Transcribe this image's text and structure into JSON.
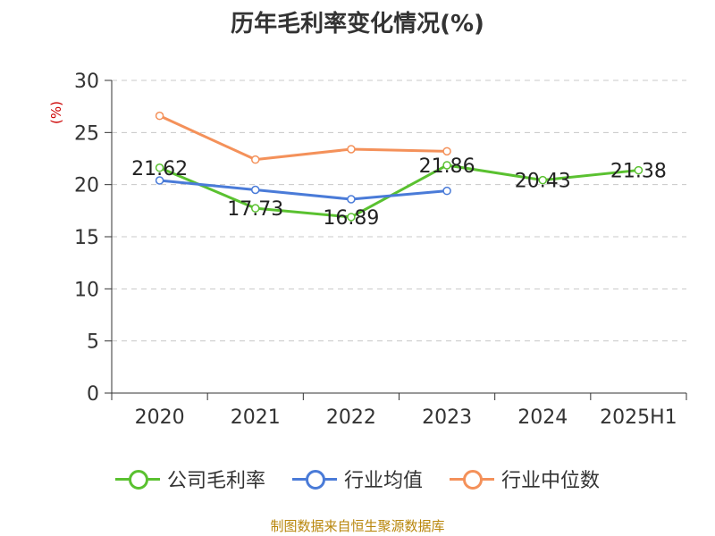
{
  "title": "历年毛利率变化情况(%)",
  "source": "制图数据来自恒生聚源数据库",
  "chart_data": {
    "type": "line",
    "categories": [
      "2020",
      "2021",
      "2022",
      "2023",
      "2024",
      "2025H1"
    ],
    "ylabel": "(%)",
    "ylim": [
      0,
      30
    ],
    "yticks": [
      0,
      5,
      10,
      15,
      20,
      25,
      30
    ],
    "grid": true,
    "legend_position": "bottom",
    "series": [
      {
        "name": "公司毛利率",
        "color": "#5ac130",
        "values": [
          21.62,
          17.73,
          16.89,
          21.86,
          20.43,
          21.38
        ],
        "labels": [
          "21.62",
          "17.73",
          "16.89",
          "21.86",
          "20.43",
          "21.38"
        ]
      },
      {
        "name": "行业均值",
        "color": "#4a7bd8",
        "values": [
          20.4,
          19.5,
          18.6,
          19.4,
          null,
          null
        ]
      },
      {
        "name": "行业中位数",
        "color": "#f4915a",
        "values": [
          26.6,
          22.4,
          23.4,
          23.2,
          null,
          null
        ]
      }
    ]
  }
}
